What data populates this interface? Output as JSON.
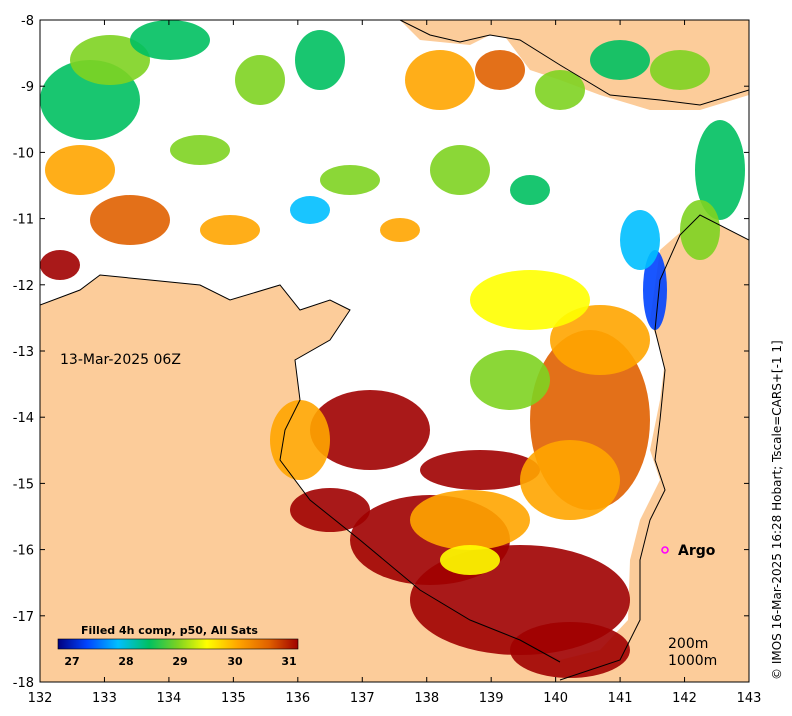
{
  "map": {
    "date_label": "13-Mar-2025 06Z",
    "argo_label": "Argo",
    "depth_labels": [
      "200m",
      "1000m"
    ],
    "credit": "© IMOS 16-Mar-2025 16:28 Hobart; Tscale=CARS+[-1 1]",
    "x_ticks": [
      "132",
      "133",
      "134",
      "135",
      "136",
      "137",
      "138",
      "139",
      "140",
      "141",
      "142",
      "143"
    ],
    "y_ticks": [
      "-8",
      "-9",
      "-10",
      "-11",
      "-12",
      "-13",
      "-14",
      "-15",
      "-16",
      "-17",
      "-18"
    ],
    "colorbar": {
      "title": "Filled 4h comp, p50, All Sats",
      "ticks": [
        "27",
        "28",
        "29",
        "30",
        "31"
      ]
    },
    "colors": {
      "land": "#fccc9a",
      "no_data": "#ffffff",
      "argo_marker": "#ff00ff",
      "scale": [
        "#000080",
        "#0044ff",
        "#00bfff",
        "#00c060",
        "#7ed321",
        "#ffff00",
        "#ffa500",
        "#e06000",
        "#a00000"
      ]
    },
    "argo": {
      "lon": 141.7,
      "lat": -16.0
    }
  }
}
